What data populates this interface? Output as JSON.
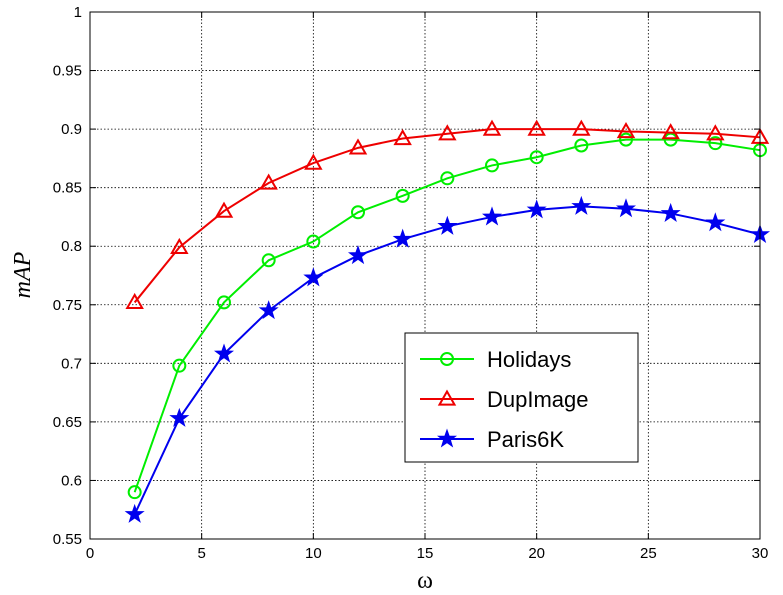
{
  "chart_data": {
    "type": "line",
    "title": "",
    "xlabel": "ω",
    "ylabel": "mAP",
    "xlim": [
      0,
      30
    ],
    "ylim": [
      0.55,
      1
    ],
    "xticks": [
      0,
      5,
      10,
      15,
      20,
      25,
      30
    ],
    "xtick_labels": [
      "0",
      "5",
      "10",
      "15",
      "20",
      "25",
      "30"
    ],
    "yticks": [
      0.55,
      0.6,
      0.65,
      0.7,
      0.75,
      0.8,
      0.85,
      0.9,
      0.95,
      1
    ],
    "ytick_labels": [
      "0.55",
      "0.6",
      "0.65",
      "0.7",
      "0.75",
      "0.8",
      "0.85",
      "0.9",
      "0.95",
      "1"
    ],
    "grid": true,
    "legend_position": "lower-right",
    "x": [
      2,
      4,
      6,
      8,
      10,
      12,
      14,
      16,
      18,
      20,
      22,
      24,
      26,
      28,
      30
    ],
    "series": [
      {
        "name": "Holidays",
        "color": "#00ee00",
        "marker": "circle",
        "values": [
          0.59,
          0.698,
          0.752,
          0.788,
          0.804,
          0.829,
          0.843,
          0.858,
          0.869,
          0.876,
          0.886,
          0.891,
          0.891,
          0.888,
          0.882
        ]
      },
      {
        "name": "DupImage",
        "color": "#ee0000",
        "marker": "triangle",
        "values": [
          0.752,
          0.799,
          0.83,
          0.854,
          0.871,
          0.884,
          0.892,
          0.896,
          0.9,
          0.9,
          0.9,
          0.898,
          0.897,
          0.896,
          0.893
        ]
      },
      {
        "name": "Paris6K",
        "color": "#0000ee",
        "marker": "star",
        "values": [
          0.571,
          0.653,
          0.708,
          0.745,
          0.773,
          0.792,
          0.806,
          0.817,
          0.825,
          0.831,
          0.834,
          0.832,
          0.828,
          0.82,
          0.81
        ]
      }
    ]
  }
}
